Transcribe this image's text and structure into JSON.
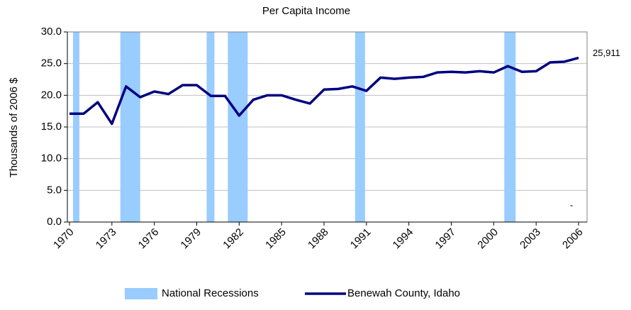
{
  "chart_data": {
    "type": "line",
    "title": "Per Capita Income",
    "y_label": "Thousands of 2006 $",
    "x": [
      1970,
      1971,
      1972,
      1973,
      1974,
      1975,
      1976,
      1977,
      1978,
      1979,
      1980,
      1981,
      1982,
      1983,
      1984,
      1985,
      1986,
      1987,
      1988,
      1989,
      1990,
      1991,
      1992,
      1993,
      1994,
      1995,
      1996,
      1997,
      1998,
      1999,
      2000,
      2001,
      2002,
      2003,
      2004,
      2005,
      2006
    ],
    "series": [
      {
        "name": "Benewah County, Idaho",
        "color": "#000080",
        "values": [
          17.1,
          17.1,
          18.9,
          15.5,
          21.4,
          19.7,
          20.6,
          20.2,
          21.6,
          21.6,
          19.9,
          19.9,
          16.8,
          19.3,
          20.0,
          20.0,
          19.3,
          18.7,
          20.9,
          21.0,
          21.4,
          20.7,
          22.8,
          22.6,
          22.8,
          22.9,
          23.6,
          23.7,
          23.6,
          23.8,
          23.6,
          24.6,
          23.7,
          23.8,
          25.2,
          25.3,
          25.911
        ],
        "value_labels": [
          null,
          null,
          null,
          null,
          null,
          null,
          null,
          null,
          null,
          null,
          null,
          null,
          null,
          null,
          null,
          null,
          null,
          null,
          null,
          null,
          null,
          null,
          null,
          null,
          null,
          null,
          null,
          null,
          null,
          null,
          null,
          null,
          null,
          null,
          null,
          null,
          "25,911"
        ]
      }
    ],
    "recessions": {
      "name": "National Recessions",
      "color": "#99ccff",
      "spans": [
        [
          1970.25,
          1970.7
        ],
        [
          1973.6,
          1975.0
        ],
        [
          1979.7,
          1980.25
        ],
        [
          1981.2,
          1982.6
        ],
        [
          1990.2,
          1990.9
        ],
        [
          2000.75,
          2001.55
        ]
      ]
    },
    "annotation": "-",
    "xlim": [
      1969.85,
      2006.6
    ],
    "xticks": [
      1970,
      1973,
      1976,
      1979,
      1982,
      1985,
      1988,
      1991,
      1994,
      1997,
      2000,
      2003,
      2006
    ],
    "ylim": [
      0,
      30
    ],
    "yticks": [
      {
        "value": 0,
        "label": "0.0"
      },
      {
        "value": 5,
        "label": "5.0"
      },
      {
        "value": 10,
        "label": "10.0"
      },
      {
        "value": 15,
        "label": "15.0"
      },
      {
        "value": 20,
        "label": "20.0"
      },
      {
        "value": 25,
        "label": "25.0"
      },
      {
        "value": 30,
        "label": "30.0"
      }
    ],
    "grid": true
  }
}
